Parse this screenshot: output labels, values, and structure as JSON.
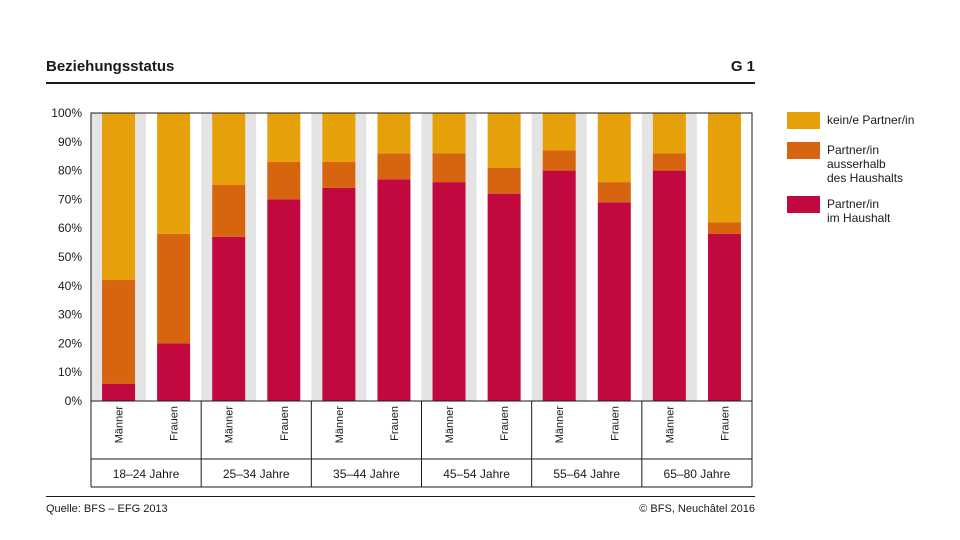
{
  "header": {
    "title": "Beziehungsstatus",
    "figure_number": "G 1"
  },
  "footer": {
    "source": "Quelle: BFS – EFG 2013",
    "copyright": "© BFS, Neuchâtel 2016"
  },
  "colors": {
    "kein_partner": "#e6a10a",
    "partner_ausserhalb": "#d7640f",
    "partner_im_haushalt": "#c2093f",
    "stripe": "#e4e4e4"
  },
  "chart_data": {
    "type": "bar",
    "stacked": true,
    "ylim": [
      0,
      100
    ],
    "yticks": [
      "0%",
      "10%",
      "20%",
      "30%",
      "40%",
      "50%",
      "60%",
      "70%",
      "80%",
      "90%",
      "100%"
    ],
    "categories": [
      "Männer",
      "Frauen",
      "Männer",
      "Frauen",
      "Männer",
      "Frauen",
      "Männer",
      "Frauen",
      "Männer",
      "Frauen",
      "Männer",
      "Frauen"
    ],
    "groups": [
      "18–24 Jahre",
      "25–34 Jahre",
      "35–44 Jahre",
      "45–54 Jahre",
      "55–64 Jahre",
      "65–80 Jahre"
    ],
    "series": [
      {
        "name": "Partner/in im Haushalt",
        "label_lines": [
          "Partner/in",
          "im Haushalt"
        ],
        "color": "#c2093f",
        "values": [
          6,
          20,
          57,
          70,
          74,
          77,
          76,
          72,
          80,
          69,
          80,
          58
        ]
      },
      {
        "name": "Partner/in ausserhalb des Haushalts",
        "label_lines": [
          "Partner/in",
          "ausserhalb",
          "des Haushalts"
        ],
        "color": "#d7640f",
        "values": [
          36,
          38,
          18,
          13,
          9,
          9,
          10,
          9,
          7,
          7,
          6,
          4
        ]
      },
      {
        "name": "kein/e Partner/in",
        "label_lines": [
          "kein/e Partner/in"
        ],
        "color": "#e6a10a",
        "values": [
          58,
          42,
          25,
          17,
          17,
          14,
          14,
          19,
          13,
          24,
          14,
          38
        ]
      }
    ],
    "legend_position": "right",
    "legend_order": [
      2,
      1,
      0
    ]
  }
}
